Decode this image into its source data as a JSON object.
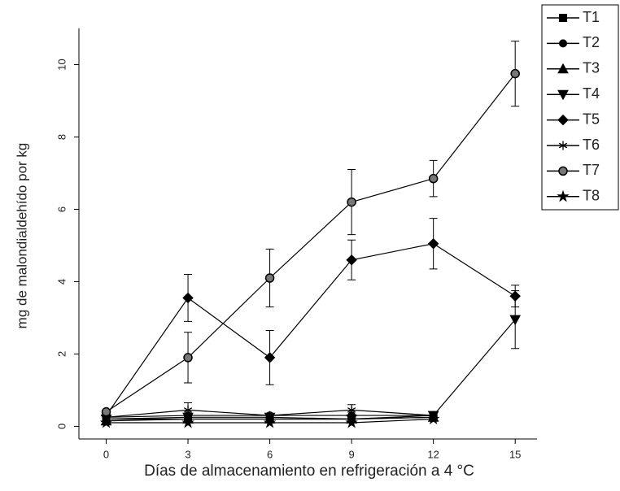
{
  "chart_data": {
    "type": "line",
    "x_label": "Días de almacenamiento en refrigeración a 4 °C",
    "y_label": "mg de malondialdehído por kg",
    "x": [
      0,
      3,
      6,
      9,
      12,
      15
    ],
    "xlim": [
      -1,
      15.8
    ],
    "xticks": [
      0,
      3,
      6,
      9,
      12,
      15
    ],
    "ylim": [
      -0.35,
      11
    ],
    "yticks": [
      0,
      2,
      4,
      6,
      8,
      10
    ],
    "legend": "upper right",
    "series": [
      {
        "name": "T1",
        "color": "#000000",
        "marker": "square",
        "values": [
          0.2,
          0.2,
          0.2,
          0.2,
          0.25,
          null
        ]
      },
      {
        "name": "T2",
        "color": "#000000",
        "marker": "circle",
        "values": [
          0.25,
          0.3,
          0.3,
          0.3,
          0.3,
          null
        ]
      },
      {
        "name": "T3",
        "color": "#000000",
        "marker": "triangle-up",
        "values": [
          0.15,
          0.2,
          0.2,
          0.2,
          0.25,
          null
        ]
      },
      {
        "name": "T4",
        "color": "#000000",
        "marker": "triangle-down",
        "values": [
          0.2,
          0.25,
          0.25,
          0.2,
          0.3,
          2.95
        ],
        "errors": [
          null,
          null,
          null,
          null,
          null,
          0.8
        ]
      },
      {
        "name": "T5",
        "color": "#000000",
        "marker": "diamond",
        "values": [
          0.3,
          3.55,
          1.9,
          4.6,
          5.05,
          3.6
        ],
        "errors": [
          null,
          0.65,
          0.75,
          0.55,
          0.7,
          0.3
        ]
      },
      {
        "name": "T6",
        "color": "#000000",
        "marker": "asterisk",
        "values": [
          0.25,
          0.45,
          0.3,
          0.45,
          0.3,
          null
        ],
        "errors": [
          null,
          0.2,
          null,
          0.15,
          null,
          null
        ]
      },
      {
        "name": "T7",
        "color": "#000000",
        "marker": "circle-half",
        "values": [
          0.4,
          1.9,
          4.1,
          6.2,
          6.85,
          9.75
        ],
        "errors": [
          null,
          0.7,
          0.8,
          0.9,
          0.5,
          0.9
        ]
      },
      {
        "name": "T8",
        "color": "#000000",
        "marker": "star",
        "values": [
          0.1,
          0.1,
          0.1,
          0.1,
          0.2,
          null
        ]
      }
    ]
  }
}
